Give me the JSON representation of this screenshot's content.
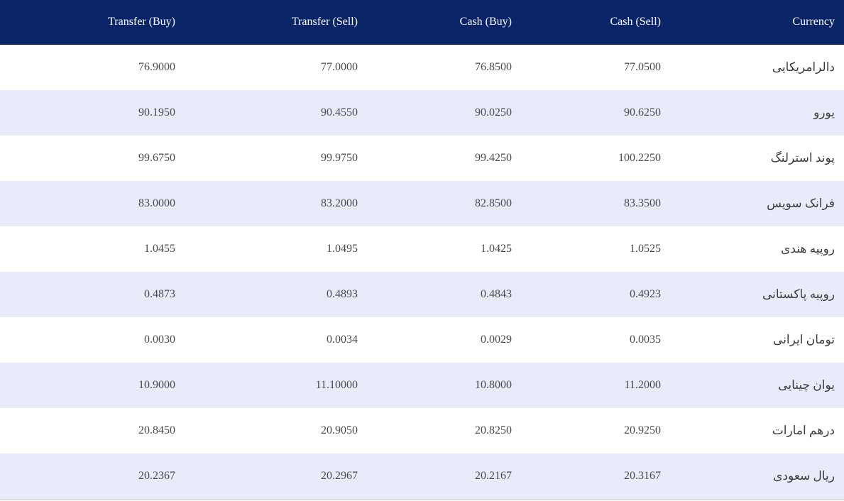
{
  "headers": {
    "transfer_buy": "Transfer (Buy)",
    "transfer_sell": "Transfer (Sell)",
    "cash_buy": "Cash (Buy)",
    "cash_sell": "Cash (Sell)",
    "currency": "Currency"
  },
  "rows": [
    {
      "transfer_buy": "76.9000",
      "transfer_sell": "77.0000",
      "cash_buy": "76.8500",
      "cash_sell": "77.0500",
      "currency": "دالرامریکایی"
    },
    {
      "transfer_buy": "90.1950",
      "transfer_sell": "90.4550",
      "cash_buy": "90.0250",
      "cash_sell": "90.6250",
      "currency": "یورو"
    },
    {
      "transfer_buy": "99.6750",
      "transfer_sell": "99.9750",
      "cash_buy": "99.4250",
      "cash_sell": "100.2250",
      "currency": "پوند استرلنگ"
    },
    {
      "transfer_buy": "83.0000",
      "transfer_sell": "83.2000",
      "cash_buy": "82.8500",
      "cash_sell": "83.3500",
      "currency": "فرانک سویس"
    },
    {
      "transfer_buy": "1.0455",
      "transfer_sell": "1.0495",
      "cash_buy": "1.0425",
      "cash_sell": "1.0525",
      "currency": "روپیه هندی"
    },
    {
      "transfer_buy": "0.4873",
      "transfer_sell": "0.4893",
      "cash_buy": "0.4843",
      "cash_sell": "0.4923",
      "currency": "روپیه پاکستانی"
    },
    {
      "transfer_buy": "0.0030",
      "transfer_sell": "0.0034",
      "cash_buy": "0.0029",
      "cash_sell": "0.0035",
      "currency": "تومان ایرانی"
    },
    {
      "transfer_buy": "10.9000",
      "transfer_sell": "11.10000",
      "cash_buy": "10.8000",
      "cash_sell": "11.2000",
      "currency": "یوان چینایی"
    },
    {
      "transfer_buy": "20.8450",
      "transfer_sell": "20.9050",
      "cash_buy": "20.8250",
      "cash_sell": "20.9250",
      "currency": "درهم امارات"
    },
    {
      "transfer_buy": "20.2367",
      "transfer_sell": "20.2967",
      "cash_buy": "20.2167",
      "cash_sell": "20.3167",
      "currency": "ریال سعودی"
    }
  ],
  "colors": {
    "header_bg": "#0a2468",
    "header_text": "#ffffff",
    "row_alt_bg": "#e8ebfa",
    "row_bg": "#ffffff",
    "text": "#4a4a4a"
  }
}
